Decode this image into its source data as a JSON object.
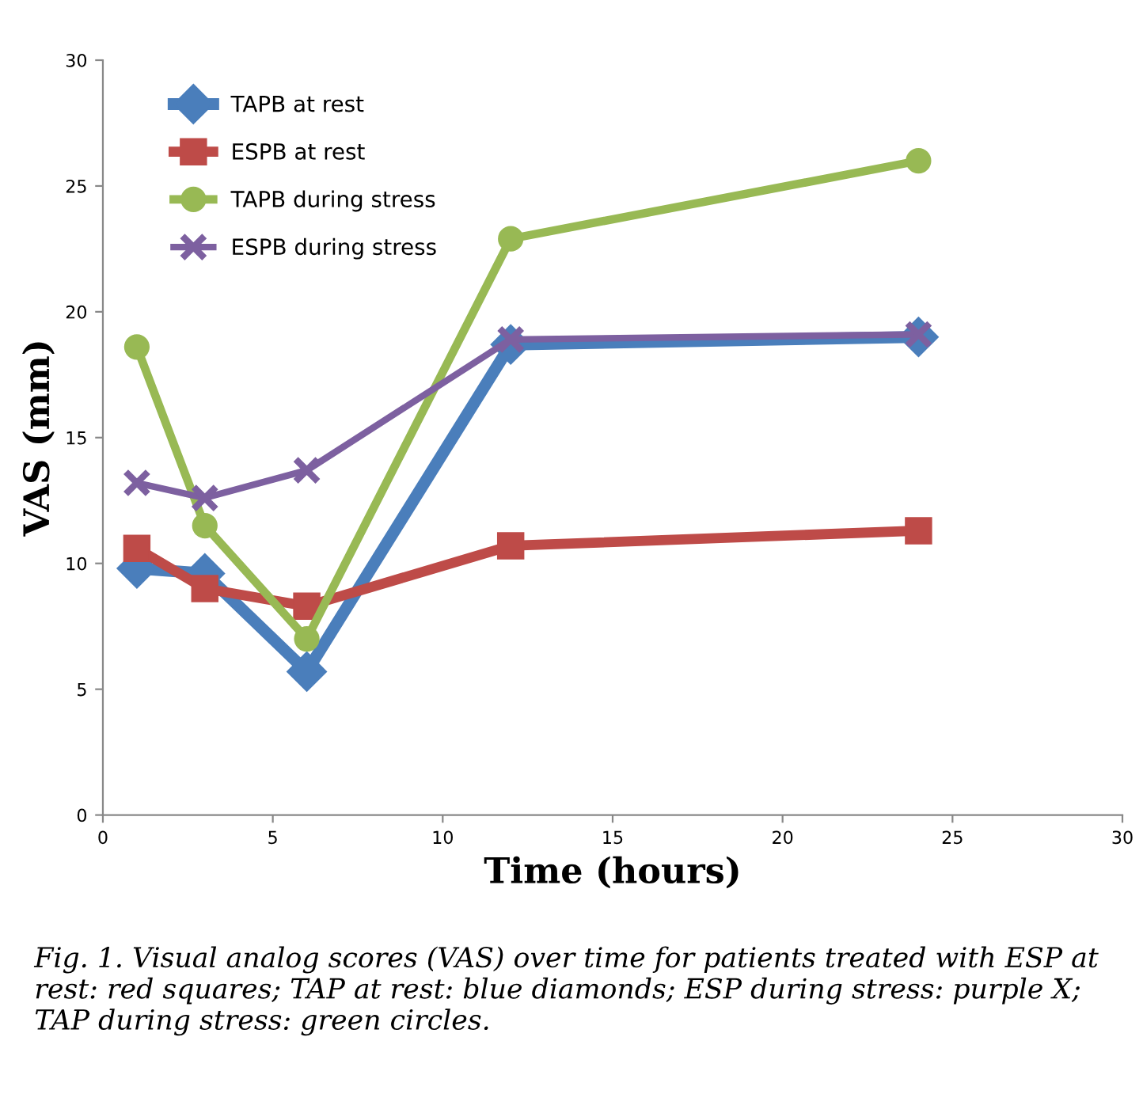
{
  "chart_data": {
    "type": "line",
    "xlabel": "Time (hours)",
    "ylabel": "VAS (mm)",
    "x": [
      1,
      3,
      6,
      12,
      24
    ],
    "series": [
      {
        "name": "TAPB at rest",
        "color": "#4a7ebb",
        "marker": "diamond",
        "values": [
          9.8,
          9.6,
          5.7,
          18.7,
          19.0
        ]
      },
      {
        "name": "ESPB at rest",
        "color": "#be4b48",
        "marker": "square",
        "values": [
          10.6,
          9.0,
          8.3,
          10.7,
          11.3
        ]
      },
      {
        "name": "TAPB during stress",
        "color": "#98b954",
        "marker": "circle",
        "values": [
          18.6,
          11.5,
          7.0,
          22.9,
          26.0
        ]
      },
      {
        "name": "ESPB during stress",
        "color": "#7d60a0",
        "marker": "cross",
        "values": [
          13.2,
          12.6,
          13.7,
          18.9,
          19.1
        ]
      }
    ],
    "xlim": [
      0,
      30
    ],
    "xticks": [
      0,
      5,
      10,
      15,
      20,
      25,
      30
    ],
    "ylim": [
      0,
      30
    ],
    "yticks": [
      0,
      5,
      10,
      15,
      20,
      25,
      30
    ],
    "grid": false,
    "legend": "top left",
    "line_style": "solid",
    "annotations": [
      "Fig. 1. Visual analog scores (VAS) over time for patients treated with ESP at rest: red squares; TAP at rest: blue diamonds; ESP during stress: purple X; TAP during stress: green circles."
    ]
  }
}
